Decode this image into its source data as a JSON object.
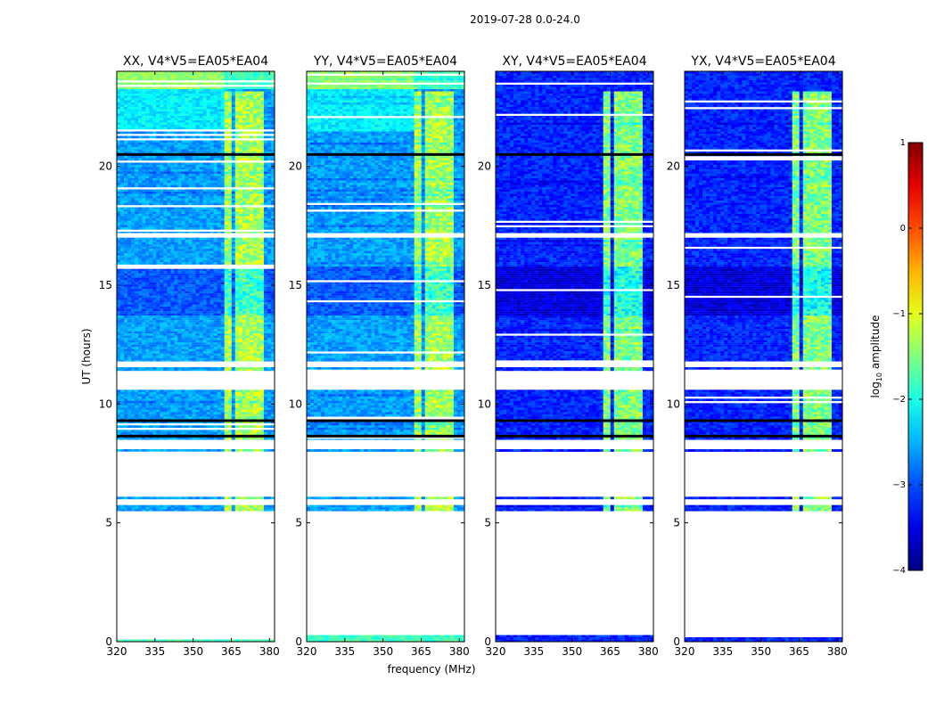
{
  "chart_data": {
    "type": "heatmap",
    "suptitle": "2019-07-28 0.0-24.0",
    "xlabel": "frequency (MHz)",
    "ylabel": "UT (hours)",
    "xlim": [
      320,
      382
    ],
    "ylim": [
      0,
      24
    ],
    "xticks": [
      "320",
      "335",
      "350",
      "365",
      "380"
    ],
    "xtick_values": [
      320,
      335,
      350,
      365,
      380
    ],
    "yticks": [
      "0",
      "5",
      "10",
      "15",
      "20"
    ],
    "ytick_values": [
      0,
      5,
      10,
      15,
      20
    ],
    "colorbar": {
      "label": "log",
      "label_sub": "10",
      "label_rest": " amplitude",
      "range": [
        -4,
        1
      ],
      "ticks": [
        "−4",
        "−3",
        "−2",
        "−1",
        "0",
        "1"
      ],
      "tick_values": [
        -4,
        -3,
        -2,
        -1,
        0,
        1
      ],
      "colormap": "jet"
    },
    "panels": [
      {
        "title": "XX, V4*V5=EA05*EA04",
        "pol": "XX",
        "level": -2.6,
        "rfi_level": -1.3
      },
      {
        "title": "YY, V4*V5=EA05*EA04",
        "pol": "YY",
        "level": -2.6,
        "rfi_level": -1.3
      },
      {
        "title": "XY, V4*V5=EA05*EA04",
        "pol": "XY",
        "level": -3.2,
        "rfi_level": -1.5
      },
      {
        "title": "YX, V4*V5=EA05*EA04",
        "pol": "YX",
        "level": -3.2,
        "rfi_level": -1.5
      }
    ],
    "data_segments_hours": [
      [
        0,
        0.28
      ],
      [
        5.5,
        5.75
      ],
      [
        6.0,
        6.1
      ],
      [
        8.0,
        8.1
      ],
      [
        8.5,
        10.6
      ],
      [
        11.4,
        11.55
      ],
      [
        11.8,
        17.0
      ],
      [
        17.2,
        24.0
      ]
    ],
    "rfi_band_mhz": [
      [
        362,
        365
      ],
      [
        366,
        369
      ],
      [
        370,
        373
      ],
      [
        374,
        378
      ]
    ]
  }
}
